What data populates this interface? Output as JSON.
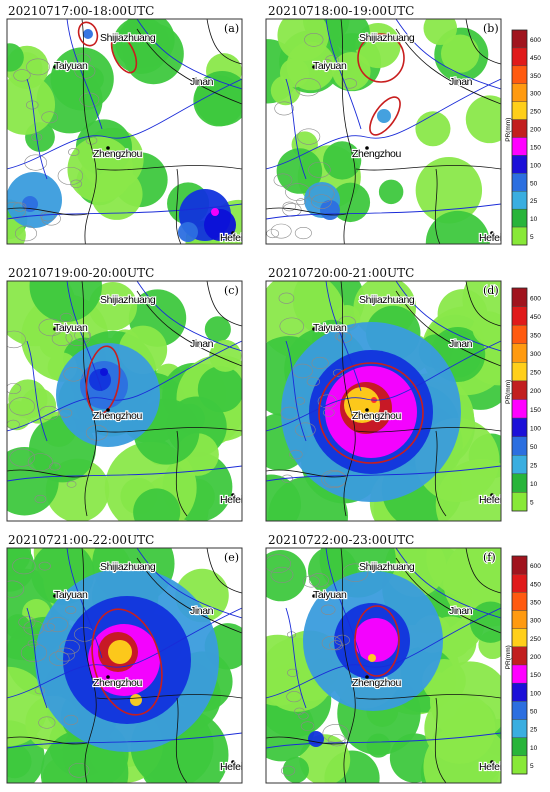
{
  "panels": [
    {
      "id": "a",
      "title": "20210717:00-18:00UTC",
      "letter": "(a)",
      "ellipses": [
        [
          88,
          34,
          9,
          12,
          -20
        ],
        [
          124,
          54,
          10,
          20,
          -25
        ]
      ],
      "rain": [
        [
          34,
          200,
          28,
          "#3a9cdd"
        ],
        [
          30,
          204,
          8,
          "#2c6fe0"
        ],
        [
          205,
          215,
          26,
          "#1133dd"
        ],
        [
          220,
          225,
          16,
          "#0c10d8"
        ],
        [
          188,
          232,
          10,
          "#2c6fe0"
        ],
        [
          215,
          212,
          4,
          "#ff00ff"
        ],
        [
          88,
          34,
          5,
          "#2c6fe0"
        ]
      ]
    },
    {
      "id": "b",
      "title": "20210718:00-19:00UTC",
      "letter": "(b)",
      "ellipses": [
        [
          381,
          58,
          23,
          24,
          0
        ],
        [
          385,
          116,
          10,
          22,
          35
        ]
      ],
      "rain": [
        [
          322,
          200,
          18,
          "#3a9cdd"
        ],
        [
          330,
          210,
          10,
          "#2c6fe0"
        ],
        [
          384,
          116,
          7,
          "#3a9cdd"
        ]
      ]
    },
    {
      "id": "c",
      "title": "20210719:00-20:00UTC",
      "letter": "(c)",
      "ellipses": [
        [
          103,
          380,
          16,
          34,
          8
        ]
      ],
      "rain": [
        [
          108,
          395,
          52,
          "#3a9cdd"
        ],
        [
          104,
          385,
          24,
          "#2c6fe0"
        ],
        [
          100,
          380,
          11,
          "#1133dd"
        ],
        [
          104,
          372,
          4,
          "#0c10d8"
        ]
      ]
    },
    {
      "id": "d",
      "title": "20210720:00-21:00UTC",
      "letter": "(d)",
      "ellipses": [
        [
          371,
          413,
          52,
          50,
          0
        ]
      ],
      "rain": [
        [
          371,
          412,
          90,
          "#3a9cdd"
        ],
        [
          371,
          412,
          62,
          "#1133dd"
        ],
        [
          371,
          412,
          46,
          "#ff00ff"
        ],
        [
          366,
          408,
          26,
          "#c41a1a"
        ],
        [
          362,
          405,
          18,
          "#ffd21a"
        ],
        [
          374,
          400,
          3,
          "#ff2a2a"
        ]
      ]
    },
    {
      "id": "e",
      "title": "20210721:00-22:00UTC",
      "letter": "(e)",
      "ellipses": [
        [
          127,
          662,
          33,
          54,
          -15
        ]
      ],
      "rain": [
        [
          127,
          660,
          92,
          "#3a9cdd"
        ],
        [
          127,
          660,
          64,
          "#1133dd"
        ],
        [
          124,
          660,
          36,
          "#ff00ff"
        ],
        [
          118,
          652,
          20,
          "#c41a1a"
        ],
        [
          120,
          652,
          12,
          "#ffd21a"
        ],
        [
          136,
          700,
          6,
          "#ffd21a"
        ]
      ]
    },
    {
      "id": "f",
      "title": "20210722:00-23:00UTC",
      "letter": "(f)",
      "ellipses": [
        [
          377,
          641,
          22,
          35,
          0
        ]
      ],
      "rain": [
        [
          373,
          641,
          70,
          "#3a9cdd"
        ],
        [
          372,
          641,
          38,
          "#1133dd"
        ],
        [
          376,
          640,
          22,
          "#ff00ff"
        ],
        [
          372,
          658,
          4,
          "#ffd21a"
        ],
        [
          316,
          739,
          8,
          "#1133dd"
        ]
      ]
    }
  ],
  "cities": [
    {
      "name": "Shijiazhuang",
      "panels": "abcdef"
    },
    {
      "name": "Taiyuan",
      "panels": "abcdef"
    },
    {
      "name": "Jinan",
      "panels": "abcdef"
    },
    {
      "name": "Zhengzhou",
      "panels": "abcdef"
    },
    {
      "name": "Hefei",
      "panels": "abcdef"
    }
  ],
  "colorbar": {
    "unit_label": "PR(mm)",
    "levels": [
      "600",
      "450",
      "350",
      "300",
      "250",
      "200",
      "150",
      "100",
      "50",
      "25",
      "10",
      "5"
    ],
    "colors": [
      "#a0141e",
      "#e01a1a",
      "#ff5a10",
      "#ff9a10",
      "#ffcf1a",
      "#c21f1f",
      "#ff00ff",
      "#1c10d8",
      "#2c6fe0",
      "#3aaee0",
      "#28b43a",
      "#88e838"
    ]
  },
  "colors": {
    "base_green": "#3ec83e",
    "light_green": "#8ae84a",
    "border": "#333333",
    "ellipse": "#c81e1e",
    "river": "#1a2bd8",
    "province": "#111111"
  }
}
